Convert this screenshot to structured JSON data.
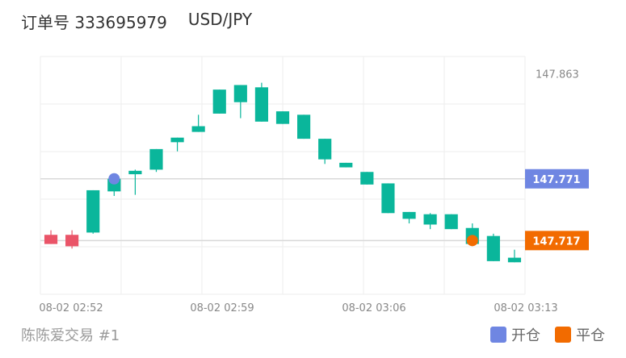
{
  "header": {
    "order_label": "订单号 333695979",
    "symbol": "USD/JPY"
  },
  "footer": {
    "account": "陈陈爱交易 #1"
  },
  "legend": [
    {
      "label": "开仓",
      "color": "#6f86e2"
    },
    {
      "label": "平仓",
      "color": "#f26b00"
    }
  ],
  "colors": {
    "up": "#ea5468",
    "down": "#0ab69b",
    "open_marker": "#6f86e2",
    "close_marker": "#f26b00",
    "grid": "#eeeeee",
    "axis_text": "#888888"
  },
  "chart_data": {
    "type": "candlestick",
    "ylim": [
      147.67,
      147.878
    ],
    "y_top_label": "147.863",
    "x_tick_labels": [
      "08-02 02:52",
      "08-02 02:59",
      "08-02 03:06",
      "08-02 03:13"
    ],
    "candles": [
      {
        "o": 147.714,
        "c": 147.722,
        "h": 147.726,
        "l": 147.714
      },
      {
        "o": 147.712,
        "c": 147.722,
        "h": 147.726,
        "l": 147.71
      },
      {
        "o": 147.761,
        "c": 147.724,
        "h": 147.761,
        "l": 147.723
      },
      {
        "o": 147.771,
        "c": 147.76,
        "h": 147.772,
        "l": 147.756
      },
      {
        "o": 147.778,
        "c": 147.775,
        "h": 147.779,
        "l": 147.757
      },
      {
        "o": 147.797,
        "c": 147.779,
        "h": 147.797,
        "l": 147.777
      },
      {
        "o": 147.807,
        "c": 147.803,
        "h": 147.807,
        "l": 147.795
      },
      {
        "o": 147.817,
        "c": 147.812,
        "h": 147.827,
        "l": 147.812
      },
      {
        "o": 147.849,
        "c": 147.828,
        "h": 147.849,
        "l": 147.828
      },
      {
        "o": 147.853,
        "c": 147.838,
        "h": 147.853,
        "l": 147.824
      },
      {
        "o": 147.851,
        "c": 147.821,
        "h": 147.855,
        "l": 147.821
      },
      {
        "o": 147.83,
        "c": 147.819,
        "h": 147.83,
        "l": 147.819
      },
      {
        "o": 147.827,
        "c": 147.806,
        "h": 147.827,
        "l": 147.806
      },
      {
        "o": 147.806,
        "c": 147.788,
        "h": 147.806,
        "l": 147.784
      },
      {
        "o": 147.785,
        "c": 147.781,
        "h": 147.785,
        "l": 147.781
      },
      {
        "o": 147.777,
        "c": 147.766,
        "h": 147.777,
        "l": 147.766
      },
      {
        "o": 147.767,
        "c": 147.741,
        "h": 147.767,
        "l": 147.741
      },
      {
        "o": 147.742,
        "c": 147.736,
        "h": 147.742,
        "l": 147.732
      },
      {
        "o": 147.74,
        "c": 147.731,
        "h": 147.741,
        "l": 147.727
      },
      {
        "o": 147.74,
        "c": 147.727,
        "h": 147.74,
        "l": 147.727
      },
      {
        "o": 147.728,
        "c": 147.714,
        "h": 147.732,
        "l": 147.714
      },
      {
        "o": 147.721,
        "c": 147.699,
        "h": 147.723,
        "l": 147.699
      },
      {
        "o": 147.702,
        "c": 147.698,
        "h": 147.709,
        "l": 147.698
      }
    ],
    "open_price": {
      "label": "147.771",
      "value": 147.771,
      "candle_index": 3
    },
    "close_price": {
      "label": "147.717",
      "value": 147.717,
      "candle_index": 20
    }
  }
}
